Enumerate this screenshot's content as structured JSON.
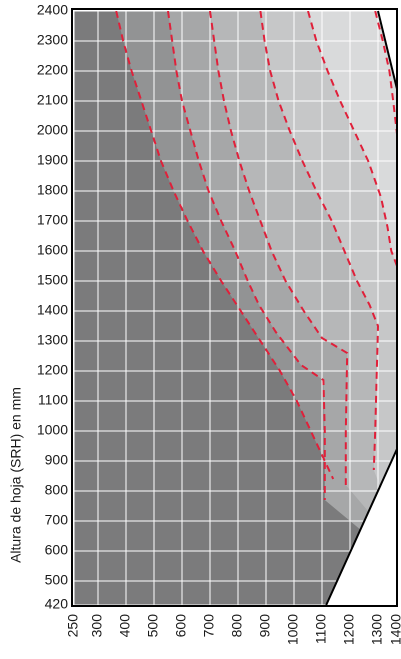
{
  "chart_data": {
    "type": "area",
    "xlabel": "",
    "ylabel": "Altura de hoja (SRH) en mm",
    "x_ticks": [
      250,
      300,
      400,
      500,
      600,
      700,
      800,
      900,
      1000,
      1100,
      1200,
      1300,
      1400
    ],
    "y_ticks": [
      420,
      500,
      600,
      700,
      800,
      900,
      1000,
      1100,
      1200,
      1300,
      1400,
      1500,
      1600,
      1700,
      1800,
      1900,
      2000,
      2100,
      2200,
      2300,
      2400
    ],
    "xlim": [
      250,
      1400
    ],
    "ylim": [
      420,
      2400
    ],
    "grid": true,
    "colors": {
      "frame": "#000000",
      "grid": "#ffffff",
      "zone_boundary": "#e0203a",
      "zones": [
        "#7b7b7c",
        "#929394",
        "#a6a7a8",
        "#b6b7b8",
        "#c6c7c8",
        "#d9dadb"
      ],
      "excluded": "#ffffff"
    },
    "valid_region": [
      [
        250,
        420
      ],
      [
        250,
        2400
      ],
      [
        1300,
        2400
      ],
      [
        1400,
        2140
      ],
      [
        1400,
        940
      ],
      [
        1115,
        420
      ]
    ],
    "zone_boundaries": [
      {
        "points": [
          [
            365,
            2400
          ],
          [
            390,
            2300
          ],
          [
            420,
            2200
          ],
          [
            455,
            2100
          ],
          [
            490,
            2000
          ],
          [
            525,
            1900
          ],
          [
            570,
            1800
          ],
          [
            620,
            1700
          ],
          [
            675,
            1600
          ],
          [
            740,
            1500
          ],
          [
            810,
            1400
          ],
          [
            880,
            1300
          ],
          [
            950,
            1200
          ],
          [
            1010,
            1100
          ],
          [
            1060,
            1000
          ],
          [
            1110,
            900
          ],
          [
            1140,
            840
          ]
        ]
      },
      {
        "points": [
          [
            550,
            2400
          ],
          [
            565,
            2300
          ],
          [
            580,
            2200
          ],
          [
            600,
            2100
          ],
          [
            630,
            2000
          ],
          [
            660,
            1900
          ],
          [
            695,
            1800
          ],
          [
            740,
            1700
          ],
          [
            790,
            1600
          ],
          [
            835,
            1500
          ],
          [
            875,
            1420
          ],
          [
            935,
            1330
          ],
          [
            1025,
            1220
          ],
          [
            1105,
            1170
          ],
          [
            1110,
            1000
          ],
          [
            1110,
            770
          ]
        ]
      },
      {
        "points": [
          [
            700,
            2400
          ],
          [
            715,
            2300
          ],
          [
            730,
            2200
          ],
          [
            750,
            2100
          ],
          [
            775,
            2000
          ],
          [
            805,
            1900
          ],
          [
            840,
            1800
          ],
          [
            880,
            1700
          ],
          [
            920,
            1600
          ],
          [
            970,
            1500
          ],
          [
            1035,
            1400
          ],
          [
            1100,
            1310
          ],
          [
            1190,
            1260
          ],
          [
            1185,
            1000
          ],
          [
            1185,
            820
          ]
        ]
      },
      {
        "points": [
          [
            880,
            2400
          ],
          [
            895,
            2300
          ],
          [
            915,
            2200
          ],
          [
            945,
            2100
          ],
          [
            985,
            2000
          ],
          [
            1030,
            1900
          ],
          [
            1080,
            1800
          ],
          [
            1135,
            1700
          ],
          [
            1180,
            1600
          ],
          [
            1225,
            1500
          ],
          [
            1270,
            1420
          ],
          [
            1300,
            1350
          ],
          [
            1290,
            1000
          ],
          [
            1285,
            870
          ]
        ]
      },
      {
        "points": [
          [
            1050,
            2400
          ],
          [
            1080,
            2300
          ],
          [
            1120,
            2200
          ],
          [
            1165,
            2100
          ],
          [
            1215,
            2000
          ],
          [
            1265,
            1900
          ],
          [
            1315,
            1780
          ],
          [
            1350,
            1680
          ],
          [
            1370,
            1600
          ],
          [
            1400,
            1550
          ]
        ]
      },
      {
        "points": [
          [
            1290,
            2400
          ],
          [
            1325,
            2300
          ],
          [
            1360,
            2200
          ],
          [
            1380,
            2100
          ],
          [
            1400,
            1990
          ]
        ]
      }
    ]
  }
}
